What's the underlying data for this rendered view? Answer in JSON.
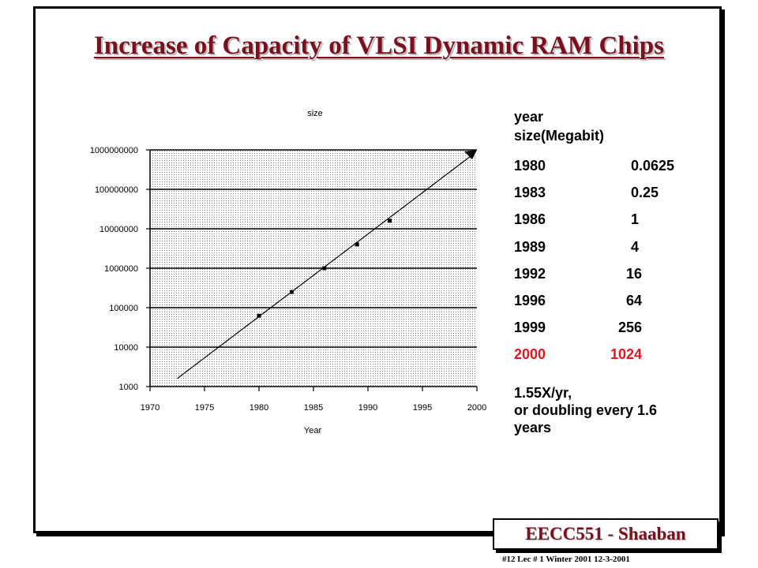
{
  "title": "Increase of Capacity of VLSI Dynamic RAM Chips",
  "chart_data": {
    "type": "scatter",
    "title": "size",
    "xlabel": "Year",
    "ylabel": "",
    "scale_y": "log",
    "xlim": [
      1970,
      2000
    ],
    "ylim": [
      1000,
      1000000000
    ],
    "x_ticks": [
      "1970",
      "1975",
      "1980",
      "1985",
      "1990",
      "1995",
      "2000"
    ],
    "y_ticks": [
      "1000",
      "10000",
      "100000",
      "1000000",
      "10000000",
      "100000000",
      "1000000000"
    ],
    "grid": true,
    "legend": "none",
    "series": [
      {
        "x": [
          1980,
          1983,
          1986,
          1989,
          1992
        ],
        "y": [
          62500,
          250000,
          1000000,
          4000000,
          16000000
        ]
      }
    ],
    "trend_line": {
      "x": [
        1972.5,
        2000
      ],
      "y": [
        1600,
        1000000000
      ]
    }
  },
  "table": {
    "header_line1": "year",
    "header_line2": "size(Megabit)",
    "rows": [
      {
        "year": "1980",
        "size": "0.0625"
      },
      {
        "year": "1983",
        "size": "0.25"
      },
      {
        "year": "1986",
        "size": "1"
      },
      {
        "year": "1989",
        "size": "4"
      },
      {
        "year": "1992",
        "size": "16"
      },
      {
        "year": "1996",
        "size": "64"
      },
      {
        "year": "1999",
        "size": "256"
      },
      {
        "year": "2000",
        "size": "1024"
      }
    ]
  },
  "note_line1": "1.55X/yr,",
  "note_line2": "or doubling every 1.6",
  "note_line3": "years",
  "footer_badge": "EECC551 - Shaaban",
  "footer_note": "#12   Lec # 1 Winter 2001   12-3-2001",
  "colors": {
    "title": "#7a0f1d",
    "highlight": "#e8141b"
  }
}
